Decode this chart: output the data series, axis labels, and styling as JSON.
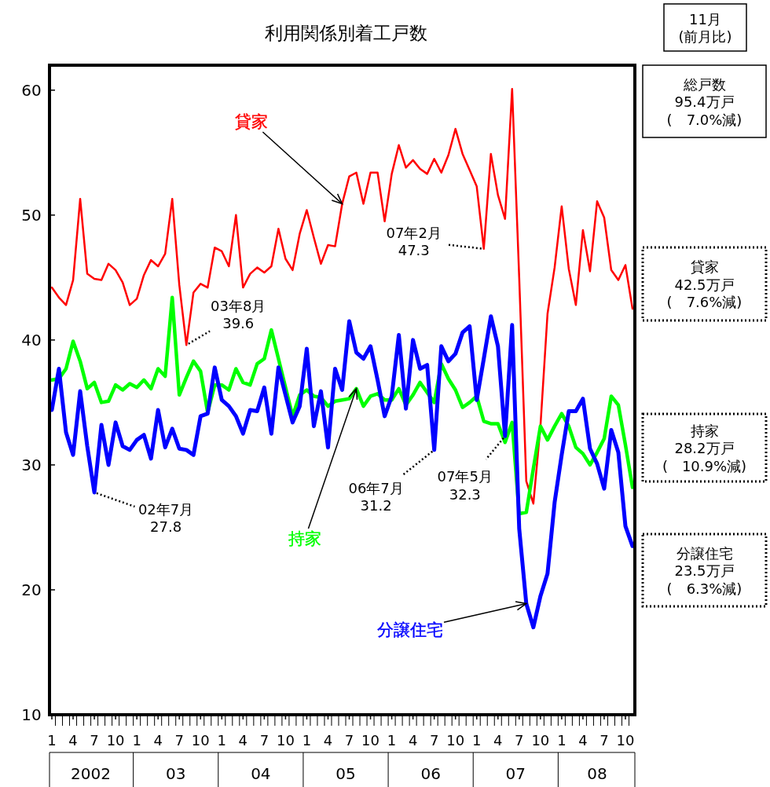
{
  "chart_data": {
    "type": "line",
    "title": "利用関係別着工戸数",
    "x": [
      "2002-01",
      "2002-02",
      "2002-03",
      "2002-04",
      "2002-05",
      "2002-06",
      "2002-07",
      "2002-08",
      "2002-09",
      "2002-10",
      "2002-11",
      "2002-12",
      "2003-01",
      "2003-02",
      "2003-03",
      "2003-04",
      "2003-05",
      "2003-06",
      "2003-07",
      "2003-08",
      "2003-09",
      "2003-10",
      "2003-11",
      "2003-12",
      "2004-01",
      "2004-02",
      "2004-03",
      "2004-04",
      "2004-05",
      "2004-06",
      "2004-07",
      "2004-08",
      "2004-09",
      "2004-10",
      "2004-11",
      "2004-12",
      "2005-01",
      "2005-02",
      "2005-03",
      "2005-04",
      "2005-05",
      "2005-06",
      "2005-07",
      "2005-08",
      "2005-09",
      "2005-10",
      "2005-11",
      "2005-12",
      "2006-01",
      "2006-02",
      "2006-03",
      "2006-04",
      "2006-05",
      "2006-06",
      "2006-07",
      "2006-08",
      "2006-09",
      "2006-10",
      "2006-11",
      "2006-12",
      "2007-01",
      "2007-02",
      "2007-03",
      "2007-04",
      "2007-05",
      "2007-06",
      "2007-07",
      "2007-08",
      "2007-09",
      "2007-10",
      "2007-11",
      "2007-12",
      "2008-01",
      "2008-02",
      "2008-03",
      "2008-04",
      "2008-05",
      "2008-06",
      "2008-07",
      "2008-08",
      "2008-09",
      "2008-10",
      "2008-11"
    ],
    "series": [
      {
        "name": "貸家",
        "color": "#ff0000",
        "values": [
          44.2,
          43.4,
          42.8,
          44.8,
          51.3,
          45.3,
          44.9,
          44.8,
          46.1,
          45.6,
          44.6,
          42.8,
          43.3,
          45.2,
          46.4,
          45.9,
          46.9,
          51.3,
          44.4,
          39.6,
          43.8,
          44.5,
          44.2,
          47.4,
          47.1,
          45.9,
          50.0,
          44.2,
          45.3,
          45.8,
          45.4,
          45.9,
          48.9,
          46.5,
          45.6,
          48.5,
          50.4,
          48.2,
          46.1,
          47.6,
          47.5,
          50.9,
          53.1,
          53.4,
          50.9,
          53.4,
          53.4,
          49.5,
          53.3,
          55.6,
          53.8,
          54.4,
          53.7,
          53.3,
          54.5,
          53.4,
          54.8,
          56.9,
          54.9,
          53.6,
          52.3,
          47.3,
          54.9,
          51.6,
          49.7,
          60.1,
          45.0,
          28.7,
          26.9,
          33.1,
          42.1,
          45.8,
          50.7,
          45.7,
          42.8,
          48.8,
          45.5,
          51.1,
          49.8,
          45.6,
          44.8,
          46.0,
          42.5
        ]
      },
      {
        "name": "持家",
        "color": "#00ff00",
        "values": [
          36.8,
          36.9,
          37.7,
          39.9,
          38.3,
          36.1,
          36.6,
          35.0,
          35.1,
          36.4,
          36.0,
          36.5,
          36.2,
          36.8,
          36.1,
          37.7,
          37.1,
          43.4,
          35.6,
          37.0,
          38.3,
          37.5,
          34.2,
          36.4,
          36.4,
          36.0,
          37.7,
          36.6,
          36.4,
          38.1,
          38.5,
          40.8,
          38.5,
          36.2,
          33.9,
          35.6,
          36.0,
          35.5,
          35.4,
          34.7,
          35.1,
          35.2,
          35.3,
          36.1,
          34.7,
          35.5,
          35.7,
          35.2,
          35.2,
          36.1,
          34.8,
          35.6,
          36.6,
          35.8,
          35.0,
          38.1,
          36.9,
          36.0,
          34.6,
          35.0,
          35.5,
          33.5,
          33.3,
          33.3,
          31.8,
          33.4,
          26.1,
          26.2,
          29.7,
          33.1,
          32.0,
          33.1,
          34.1,
          33.1,
          31.4,
          30.9,
          30.0,
          31.0,
          32.1,
          35.5,
          34.8,
          31.6,
          28.2
        ]
      },
      {
        "name": "分譲住宅",
        "color": "#0000ff",
        "values": [
          34.4,
          37.7,
          32.6,
          30.8,
          35.9,
          31.5,
          27.8,
          33.2,
          30.0,
          33.4,
          31.5,
          31.2,
          32.0,
          32.4,
          30.5,
          34.4,
          31.4,
          32.9,
          31.3,
          31.2,
          30.8,
          33.9,
          34.1,
          37.8,
          35.2,
          34.7,
          33.9,
          32.5,
          34.4,
          34.3,
          36.2,
          32.5,
          37.8,
          35.6,
          33.4,
          34.7,
          39.3,
          33.1,
          35.9,
          31.4,
          37.7,
          36.0,
          41.5,
          39.0,
          38.5,
          39.5,
          36.8,
          33.9,
          35.5,
          40.4,
          34.5,
          40.0,
          37.7,
          38.0,
          31.2,
          39.5,
          38.3,
          38.9,
          40.6,
          41.1,
          35.2,
          38.5,
          41.9,
          39.5,
          32.3,
          41.2,
          24.9,
          18.9,
          17.0,
          19.5,
          21.3,
          27.0,
          30.8,
          34.3,
          34.3,
          35.3,
          31.3,
          30.1,
          28.1,
          32.8,
          31.0,
          25.1,
          23.5
        ]
      }
    ],
    "xlim": [
      "2002-01",
      "2008-11"
    ],
    "ylim": [
      10,
      62
    ],
    "yticks": [
      10,
      20,
      30,
      40,
      50,
      60
    ],
    "xticks": [
      {
        "value": "2002-01",
        "label": "1"
      },
      {
        "value": "2002-04",
        "label": "4"
      },
      {
        "value": "2002-07",
        "label": "7"
      },
      {
        "value": "2002-10",
        "label": "10"
      },
      {
        "value": "2003-01",
        "label": "1"
      },
      {
        "value": "2003-04",
        "label": "4"
      },
      {
        "value": "2003-07",
        "label": "7"
      },
      {
        "value": "2003-10",
        "label": "10"
      },
      {
        "value": "2004-01",
        "label": "1"
      },
      {
        "value": "2004-04",
        "label": "4"
      },
      {
        "value": "2004-07",
        "label": "7"
      },
      {
        "value": "2004-10",
        "label": "10"
      },
      {
        "value": "2005-01",
        "label": "1"
      },
      {
        "value": "2005-04",
        "label": "4"
      },
      {
        "value": "2005-07",
        "label": "7"
      },
      {
        "value": "2005-10",
        "label": "10"
      },
      {
        "value": "2006-01",
        "label": "1"
      },
      {
        "value": "2006-04",
        "label": "4"
      },
      {
        "value": "2006-07",
        "label": "7"
      },
      {
        "value": "2006-10",
        "label": "10"
      },
      {
        "value": "2007-01",
        "label": "1"
      },
      {
        "value": "2007-04",
        "label": "4"
      },
      {
        "value": "2007-07",
        "label": "7"
      },
      {
        "value": "2007-10",
        "label": "10"
      },
      {
        "value": "2008-01",
        "label": "1"
      },
      {
        "value": "2008-04",
        "label": "4"
      },
      {
        "value": "2008-07",
        "label": "7"
      },
      {
        "value": "2008-10",
        "label": "10"
      }
    ],
    "annotations": [
      "11月\n(前月比)",
      "総戸数\n95.4万戸\n(　7.0%減)",
      "貸家\n42.5万戸\n(　7.6%減)",
      "持家\n28.2万戸\n(　10.9%減)",
      "分譲住宅\n23.5万戸\n(　6.3%減)",
      {
        "text": "02年7月\n27.8",
        "x": "2002-07",
        "y": 27.8
      },
      {
        "text": "03年8月\n39.6",
        "x": "2003-08",
        "y": 39.6
      },
      {
        "text": "07年2月\n47.3",
        "x": "2007-02",
        "y": 47.3
      },
      {
        "text": "06年7月\n31.2",
        "x": "2006-07",
        "y": 31.2
      },
      {
        "text": "07年5月\n32.3",
        "x": "2007-05",
        "y": 32.3
      },
      "2002",
      "03",
      "04",
      "05",
      "06",
      "07",
      "08"
    ]
  }
}
